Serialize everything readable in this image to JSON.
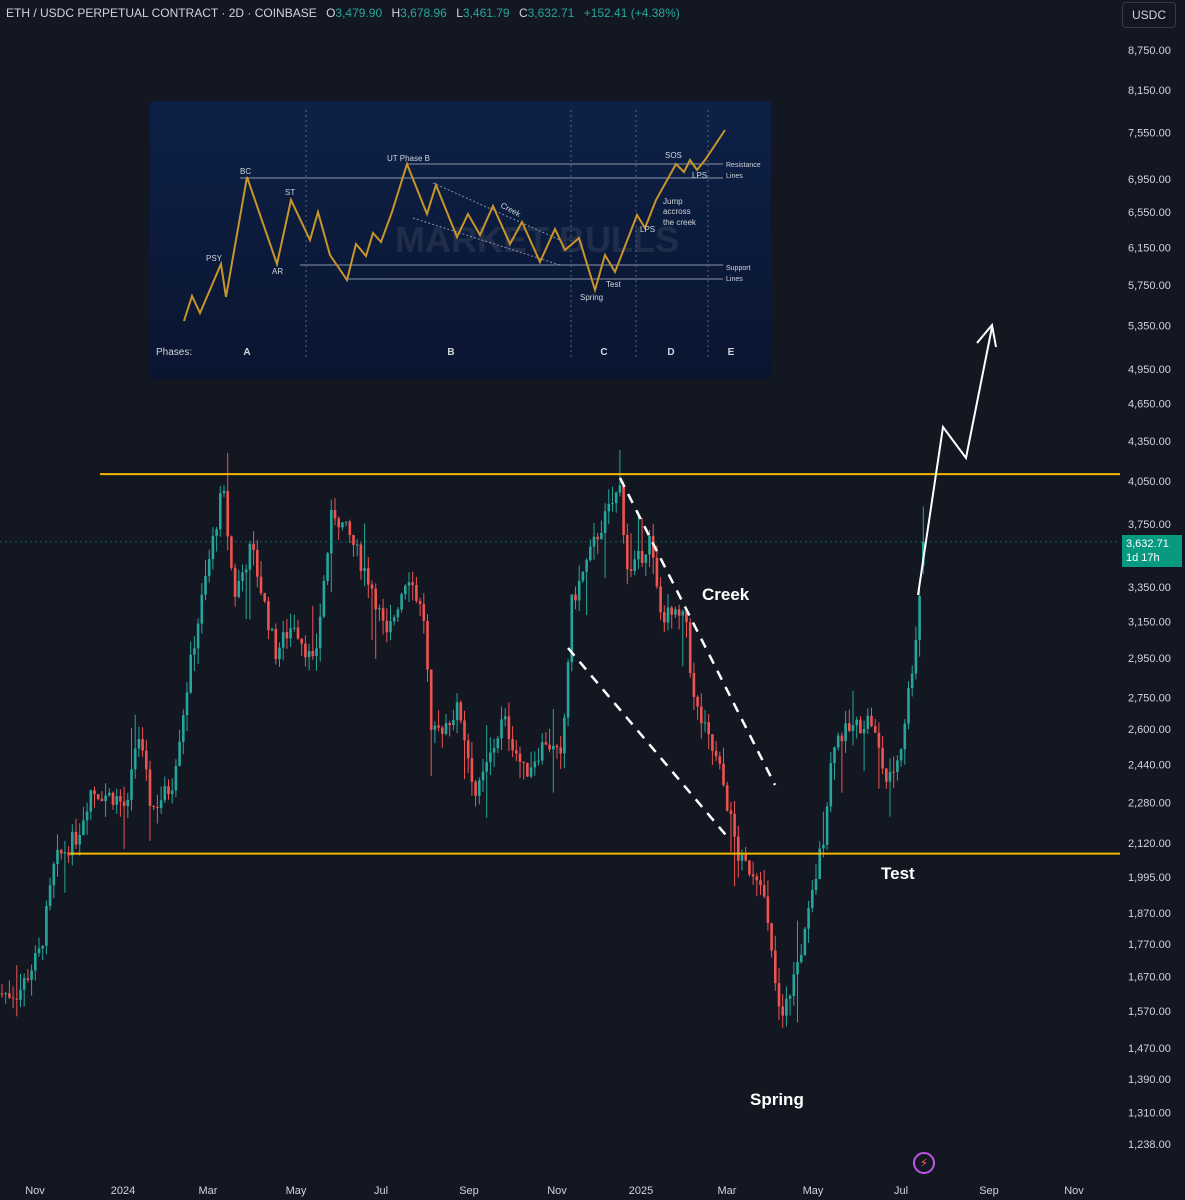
{
  "header": {
    "symbol": "ETH / USDC PERPETUAL CONTRACT · 2D · COINBASE",
    "o_label": "O",
    "o_value": "3,479.90",
    "h_label": "H",
    "h_value": "3,678.96",
    "l_label": "L",
    "l_value": "3,461.79",
    "c_label": "C",
    "c_value": "3,632.71",
    "change": "+152.41 (+4.38%)"
  },
  "currency_button": "USDC",
  "current_price": {
    "price": "3,632.71",
    "countdown": "1d 17h"
  },
  "colors": {
    "up": "#26a69a",
    "down": "#ef5350",
    "level_line": "#f5b700",
    "background": "#131722",
    "price_tag": "#089981"
  },
  "icons": {
    "bolt": "lightning-icon"
  },
  "chart_data": {
    "type": "candlestick",
    "y_ticks": [
      "8,750.00",
      "8,150.00",
      "7,550.00",
      "6,950.00",
      "6,550.00",
      "6,150.00",
      "5,750.00",
      "5,350.00",
      "4,950.00",
      "4,650.00",
      "4,350.00",
      "4,050.00",
      "3,750.00",
      "3,350.00",
      "3,150.00",
      "2,950.00",
      "2,750.00",
      "2,600.00",
      "2,440.00",
      "2,280.00",
      "2,120.00",
      "1,995.00",
      "1,870.00",
      "1,770.00",
      "1,670.00",
      "1,570.00",
      "1,470.00",
      "1,390.00",
      "1,310.00",
      "1,238.00"
    ],
    "y_scale": "log",
    "x_ticks": [
      "Nov",
      "2024",
      "Mar",
      "May",
      "Jul",
      "Sep",
      "Nov",
      "2025",
      "Mar",
      "May",
      "Jul",
      "Sep",
      "Nov"
    ],
    "x_range": [
      "2023-10-20",
      "2025-11-30"
    ],
    "resistance_level": 4100,
    "support_level": 2080,
    "anchors": [
      [
        "2023-10-20",
        1620
      ],
      [
        "2023-11-05",
        1750
      ],
      [
        "2023-11-15",
        2050
      ],
      [
        "2023-12-01",
        2150
      ],
      [
        "2023-12-10",
        2330
      ],
      [
        "2023-12-28",
        2300
      ],
      [
        "2024-01-05",
        2250
      ],
      [
        "2024-01-12",
        2600
      ],
      [
        "2024-01-22",
        2250
      ],
      [
        "2024-02-05",
        2350
      ],
      [
        "2024-02-20",
        3000
      ],
      [
        "2024-03-01",
        3450
      ],
      [
        "2024-03-12",
        4000
      ],
      [
        "2024-03-20",
        3300
      ],
      [
        "2024-04-01",
        3600
      ],
      [
        "2024-04-18",
        2980
      ],
      [
        "2024-05-01",
        3150
      ],
      [
        "2024-05-15",
        2900
      ],
      [
        "2024-05-28",
        3850
      ],
      [
        "2024-06-10",
        3650
      ],
      [
        "2024-06-25",
        3350
      ],
      [
        "2024-07-05",
        3050
      ],
      [
        "2024-07-20",
        3450
      ],
      [
        "2024-08-01",
        3150
      ],
      [
        "2024-08-05",
        2550
      ],
      [
        "2024-08-25",
        2700
      ],
      [
        "2024-09-06",
        2300
      ],
      [
        "2024-09-25",
        2650
      ],
      [
        "2024-10-10",
        2400
      ],
      [
        "2024-10-25",
        2550
      ],
      [
        "2024-11-05",
        2450
      ],
      [
        "2024-11-12",
        3250
      ],
      [
        "2024-12-01",
        3700
      ],
      [
        "2024-12-16",
        4000
      ],
      [
        "2024-12-22",
        3400
      ],
      [
        "2025-01-06",
        3650
      ],
      [
        "2025-01-13",
        3200
      ],
      [
        "2025-02-01",
        3150
      ],
      [
        "2025-02-05",
        2750
      ],
      [
        "2025-02-25",
        2400
      ],
      [
        "2025-03-10",
        2050
      ],
      [
        "2025-03-25",
        2000
      ],
      [
        "2025-04-08",
        1530
      ],
      [
        "2025-04-25",
        1800
      ],
      [
        "2025-05-08",
        2150
      ],
      [
        "2025-05-15",
        2550
      ],
      [
        "2025-06-10",
        2650
      ],
      [
        "2025-06-22",
        2350
      ],
      [
        "2025-07-01",
        2500
      ],
      [
        "2025-07-11",
        3000
      ],
      [
        "2025-07-18",
        3632.71
      ]
    ],
    "annotations": [
      "Creek",
      "Test",
      "Spring"
    ]
  },
  "inset": {
    "labels": [
      "PSY",
      "BC",
      "AR",
      "ST",
      "UT Phase B",
      "Creek",
      "SOS",
      "LPS",
      "LPS",
      "Jump",
      "accross",
      "the creek",
      "Spring",
      "Test",
      "Resistance",
      "Lines",
      "Support",
      "Lines",
      "MARKET BULLS"
    ],
    "phases_label": "Phases:",
    "phases": [
      "A",
      "B",
      "C",
      "D",
      "E"
    ]
  }
}
